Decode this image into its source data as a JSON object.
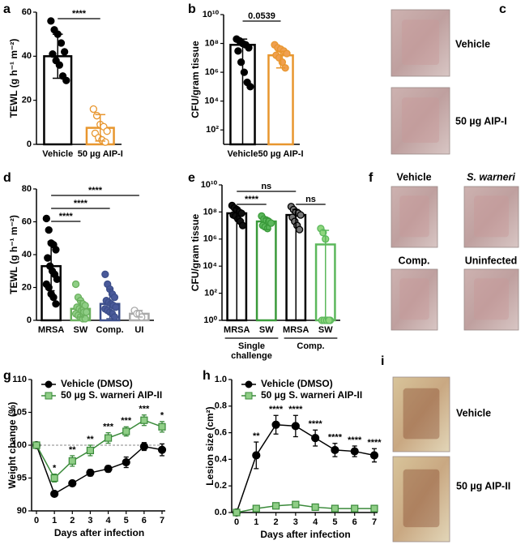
{
  "chart_data": [
    {
      "panel": "a",
      "type": "bar",
      "ylabel": "TEWL (g h⁻¹ m⁻²)",
      "categories": [
        "Vehicle",
        "50 µg AIP-I"
      ],
      "values": [
        40,
        7.5
      ],
      "errors": [
        10,
        6
      ],
      "points": [
        [
          56,
          52,
          50,
          46,
          42,
          41,
          38,
          36,
          31,
          29
        ],
        [
          16,
          13,
          9,
          8,
          6,
          5,
          3,
          2,
          1
        ]
      ],
      "colors": [
        "#000000",
        "#e8962e"
      ],
      "point_colors": [
        "#000000",
        "#ffffff"
      ],
      "ylim": [
        0,
        60
      ],
      "yticks": [
        0,
        20,
        40,
        60
      ],
      "comparisons": [
        {
          "between": [
            0,
            1
          ],
          "label": "****"
        }
      ]
    },
    {
      "panel": "b",
      "type": "bar",
      "log": true,
      "ylabel": "CFU/gram tissue",
      "categories": [
        "Vehicle",
        "50 µg AIP-I"
      ],
      "values": [
        80000000,
        15000000
      ],
      "errors": [
        120000000,
        13000000
      ],
      "points": [
        [
          200000000,
          150000000,
          100000000,
          80000000,
          50000000,
          30000000,
          5000000,
          1000000,
          200000,
          100000
        ],
        [
          80000000,
          50000000,
          40000000,
          30000000,
          20000000,
          15000000,
          10000000,
          5000000,
          2000000
        ]
      ],
      "colors": [
        "#000000",
        "#e8962e"
      ],
      "point_colors": [
        "#000000",
        "#f0a050"
      ],
      "ylim": [
        10,
        10000000000
      ],
      "yticks": [
        {
          "value": 100,
          "label": "10²"
        },
        {
          "value": 10000,
          "label": "10⁴"
        },
        {
          "value": 1000000,
          "label": "10⁶"
        },
        {
          "value": 100000000,
          "label": "10⁸"
        },
        {
          "value": 10000000000,
          "label": "10¹⁰"
        }
      ],
      "comparisons": [
        {
          "between": [
            0,
            1
          ],
          "label": "0.0539"
        }
      ]
    },
    {
      "panel": "d",
      "type": "bar",
      "ylabel": "TEWL (g h⁻¹ m⁻²)",
      "categories": [
        "MRSA",
        "SW",
        "Comp.",
        "UI"
      ],
      "values": [
        33,
        7,
        10,
        4
      ],
      "errors": [
        15,
        5,
        9,
        2
      ],
      "points": [
        [
          62,
          55,
          47,
          46,
          43,
          38,
          33,
          30,
          28,
          25,
          22,
          20,
          16,
          14,
          10
        ],
        [
          22,
          14,
          12,
          10,
          9,
          8,
          7,
          6,
          5,
          5,
          4,
          3,
          2,
          1,
          1
        ],
        [
          28,
          22,
          19,
          16,
          14,
          12,
          11,
          10,
          9,
          8,
          7,
          6,
          5,
          4,
          2
        ],
        [
          6,
          4,
          4,
          2
        ]
      ],
      "colors": [
        "#000000",
        "#6ab05e",
        "#3d4f8a",
        "#aaaaaa"
      ],
      "point_colors": [
        "#000000",
        "#8fce86",
        "#4a5a9a",
        "#ffffff"
      ],
      "ylim": [
        0,
        80
      ],
      "yticks": [
        0,
        20,
        40,
        60,
        80
      ],
      "comparisons": [
        {
          "between": [
            0,
            3
          ],
          "label": "****"
        },
        {
          "between": [
            0,
            2
          ],
          "label": "****"
        },
        {
          "between": [
            0,
            1
          ],
          "label": "****"
        }
      ]
    },
    {
      "panel": "e",
      "type": "bar",
      "log": true,
      "ylabel": "CFU/gram tissue",
      "categories": [
        "MRSA",
        "SW",
        "MRSA",
        "SW"
      ],
      "values": [
        80000000,
        20000000,
        60000000,
        400000
      ],
      "errors": [
        120000000,
        15000000,
        90000000,
        4000000
      ],
      "points": [
        [
          300000000,
          200000000,
          150000000,
          100000000,
          80000000,
          60000000,
          50000000,
          30000000,
          20000000,
          10000000
        ],
        [
          50000000,
          30000000,
          25000000,
          20000000,
          15000000,
          10000000,
          8000000,
          6000000
        ],
        [
          250000000,
          150000000,
          100000000,
          80000000,
          60000000,
          40000000,
          20000000,
          10000000,
          5000000
        ],
        [
          6000000,
          3000000,
          1000000,
          1,
          1,
          1,
          1,
          1,
          1
        ]
      ],
      "colors": [
        "#000000",
        "#3a9a3a",
        "#000000",
        "#5cb85c"
      ],
      "point_colors": [
        "#111111",
        "#5cb85c",
        "#777777",
        "#8fd67e"
      ],
      "ylim": [
        1,
        10000000000
      ],
      "yticks": [
        {
          "value": 1,
          "label": "10⁰"
        },
        {
          "value": 100,
          "label": "10²"
        },
        {
          "value": 10000,
          "label": "10⁴"
        },
        {
          "value": 1000000,
          "label": "10⁶"
        },
        {
          "value": 100000000,
          "label": "10⁸"
        },
        {
          "value": 10000000000,
          "label": "10¹⁰"
        }
      ],
      "category_groups": [
        {
          "lines": [
            "Single",
            "challenge"
          ],
          "span": [
            0,
            1
          ]
        },
        {
          "lines": [
            "Comp."
          ],
          "span": [
            2,
            3
          ]
        }
      ],
      "comparisons": [
        {
          "between": [
            0,
            2
          ],
          "label": "ns"
        },
        {
          "between": [
            0,
            1
          ],
          "label": "****"
        },
        {
          "between": [
            2,
            3
          ],
          "label": "ns"
        }
      ]
    },
    {
      "panel": "g",
      "type": "line",
      "xlabel": "Days after infection",
      "ylabel": "Weight change (%)",
      "x": [
        0,
        1,
        2,
        3,
        4,
        5,
        6,
        7
      ],
      "xlim": [
        0,
        7
      ],
      "xticks": [
        0,
        1,
        2,
        3,
        4,
        5,
        6,
        7
      ],
      "ylim": [
        90,
        110
      ],
      "yticks": [
        90,
        95,
        100,
        105,
        110
      ],
      "reference_line": 100,
      "series": [
        {
          "name": "Vehicle (DMSO)",
          "color": "#000000",
          "marker": "circle",
          "marker_fill": "#000000",
          "values": [
            100,
            92.6,
            94.2,
            95.8,
            96.4,
            97.4,
            99.8,
            99.3
          ],
          "errors": [
            0,
            0.4,
            0.3,
            0.5,
            0.5,
            0.8,
            0.6,
            0.9
          ]
        },
        {
          "name": "50 µg S. warneri AIP-II",
          "color": "#3a8a3a",
          "marker": "square",
          "marker_fill": "#8fce86",
          "values": [
            100,
            95,
            97.6,
            99.2,
            101.1,
            102.1,
            103.8,
            102.8
          ],
          "errors": [
            0,
            0.6,
            0.8,
            0.8,
            0.8,
            0.7,
            0.8,
            0.8
          ]
        }
      ],
      "significance": [
        null,
        "*",
        "**",
        "**",
        "***",
        "***",
        "***",
        "*"
      ]
    },
    {
      "panel": "h",
      "type": "line",
      "xlabel": "Days after infection",
      "ylabel": "Lesion size (cm²)",
      "x": [
        0,
        1,
        2,
        3,
        4,
        5,
        6,
        7
      ],
      "xlim": [
        0,
        7
      ],
      "xticks": [
        0,
        1,
        2,
        3,
        4,
        5,
        6,
        7
      ],
      "ylim": [
        0,
        1
      ],
      "yticks": [
        {
          "value": 0,
          "label": "0.0"
        },
        0.2,
        0.4,
        0.6,
        0.8,
        {
          "value": 1,
          "label": "1.0"
        }
      ],
      "series": [
        {
          "name": "Vehicle (DMSO)",
          "color": "#000000",
          "marker": "circle",
          "marker_fill": "#000000",
          "values": [
            0,
            0.43,
            0.66,
            0.65,
            0.56,
            0.47,
            0.46,
            0.43
          ],
          "errors": [
            0,
            0.1,
            0.07,
            0.08,
            0.06,
            0.05,
            0.04,
            0.05
          ]
        },
        {
          "name": "50 µg S. warneri AIP-II",
          "color": "#3a8a3a",
          "marker": "square",
          "marker_fill": "#8fce86",
          "values": [
            0,
            0.03,
            0.05,
            0.06,
            0.04,
            0.03,
            0.03,
            0.03
          ],
          "errors": [
            0,
            0.01,
            0.01,
            0.01,
            0.01,
            0.01,
            0.01,
            0.01
          ]
        }
      ],
      "significance": [
        null,
        "**",
        "****",
        "****",
        "****",
        "****",
        "****",
        "****"
      ]
    }
  ],
  "images": [
    {
      "panel": "c",
      "labels": [
        "Vehicle",
        "50 µg AIP-I"
      ]
    },
    {
      "panel": "f",
      "labels": [
        "Vehicle",
        "S. warneri",
        "Comp.",
        "Uninfected"
      ]
    },
    {
      "panel": "i",
      "labels": [
        "Vehicle",
        "50 µg AIP-II"
      ]
    }
  ]
}
